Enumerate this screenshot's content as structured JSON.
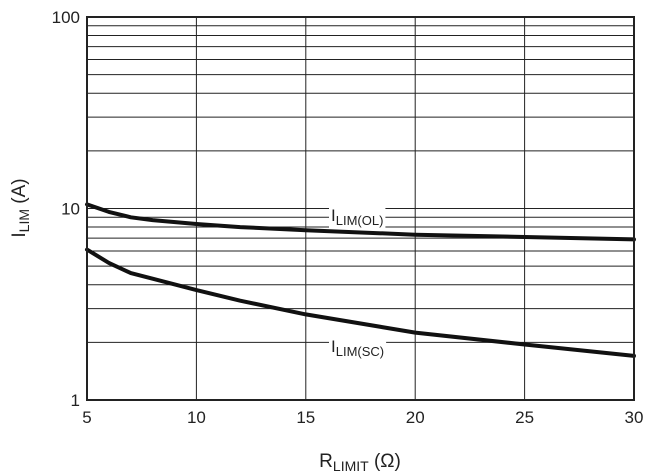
{
  "chart_data": {
    "type": "line",
    "title": "",
    "xlabel": {
      "main": "R",
      "sub": "LIMIT",
      "unit": " (Ω)"
    },
    "ylabel": {
      "main": "I",
      "sub": "LIM",
      "unit": " (A)"
    },
    "xlim": [
      5,
      30
    ],
    "ylim": [
      1,
      100
    ],
    "yscale": "log",
    "grid": true,
    "x_ticks": [
      "5",
      "10",
      "15",
      "20",
      "25",
      "30"
    ],
    "y_ticks": [
      "1",
      "10",
      "100"
    ],
    "series": [
      {
        "name": "I_LIM(OL)",
        "label": {
          "main": "I",
          "sub": "LIM(OL)"
        },
        "x": [
          5,
          6,
          7,
          8,
          10,
          12,
          15,
          20,
          25,
          30
        ],
        "y": [
          10.5,
          9.6,
          9.0,
          8.7,
          8.3,
          8.0,
          7.7,
          7.3,
          7.1,
          6.9
        ]
      },
      {
        "name": "I_LIM(SC)",
        "label": {
          "main": "I",
          "sub": "LIM(SC)"
        },
        "x": [
          5,
          6,
          7,
          8,
          10,
          12,
          15,
          20,
          25,
          30
        ],
        "y": [
          6.1,
          5.2,
          4.6,
          4.3,
          3.75,
          3.3,
          2.8,
          2.25,
          1.95,
          1.7
        ]
      }
    ]
  }
}
